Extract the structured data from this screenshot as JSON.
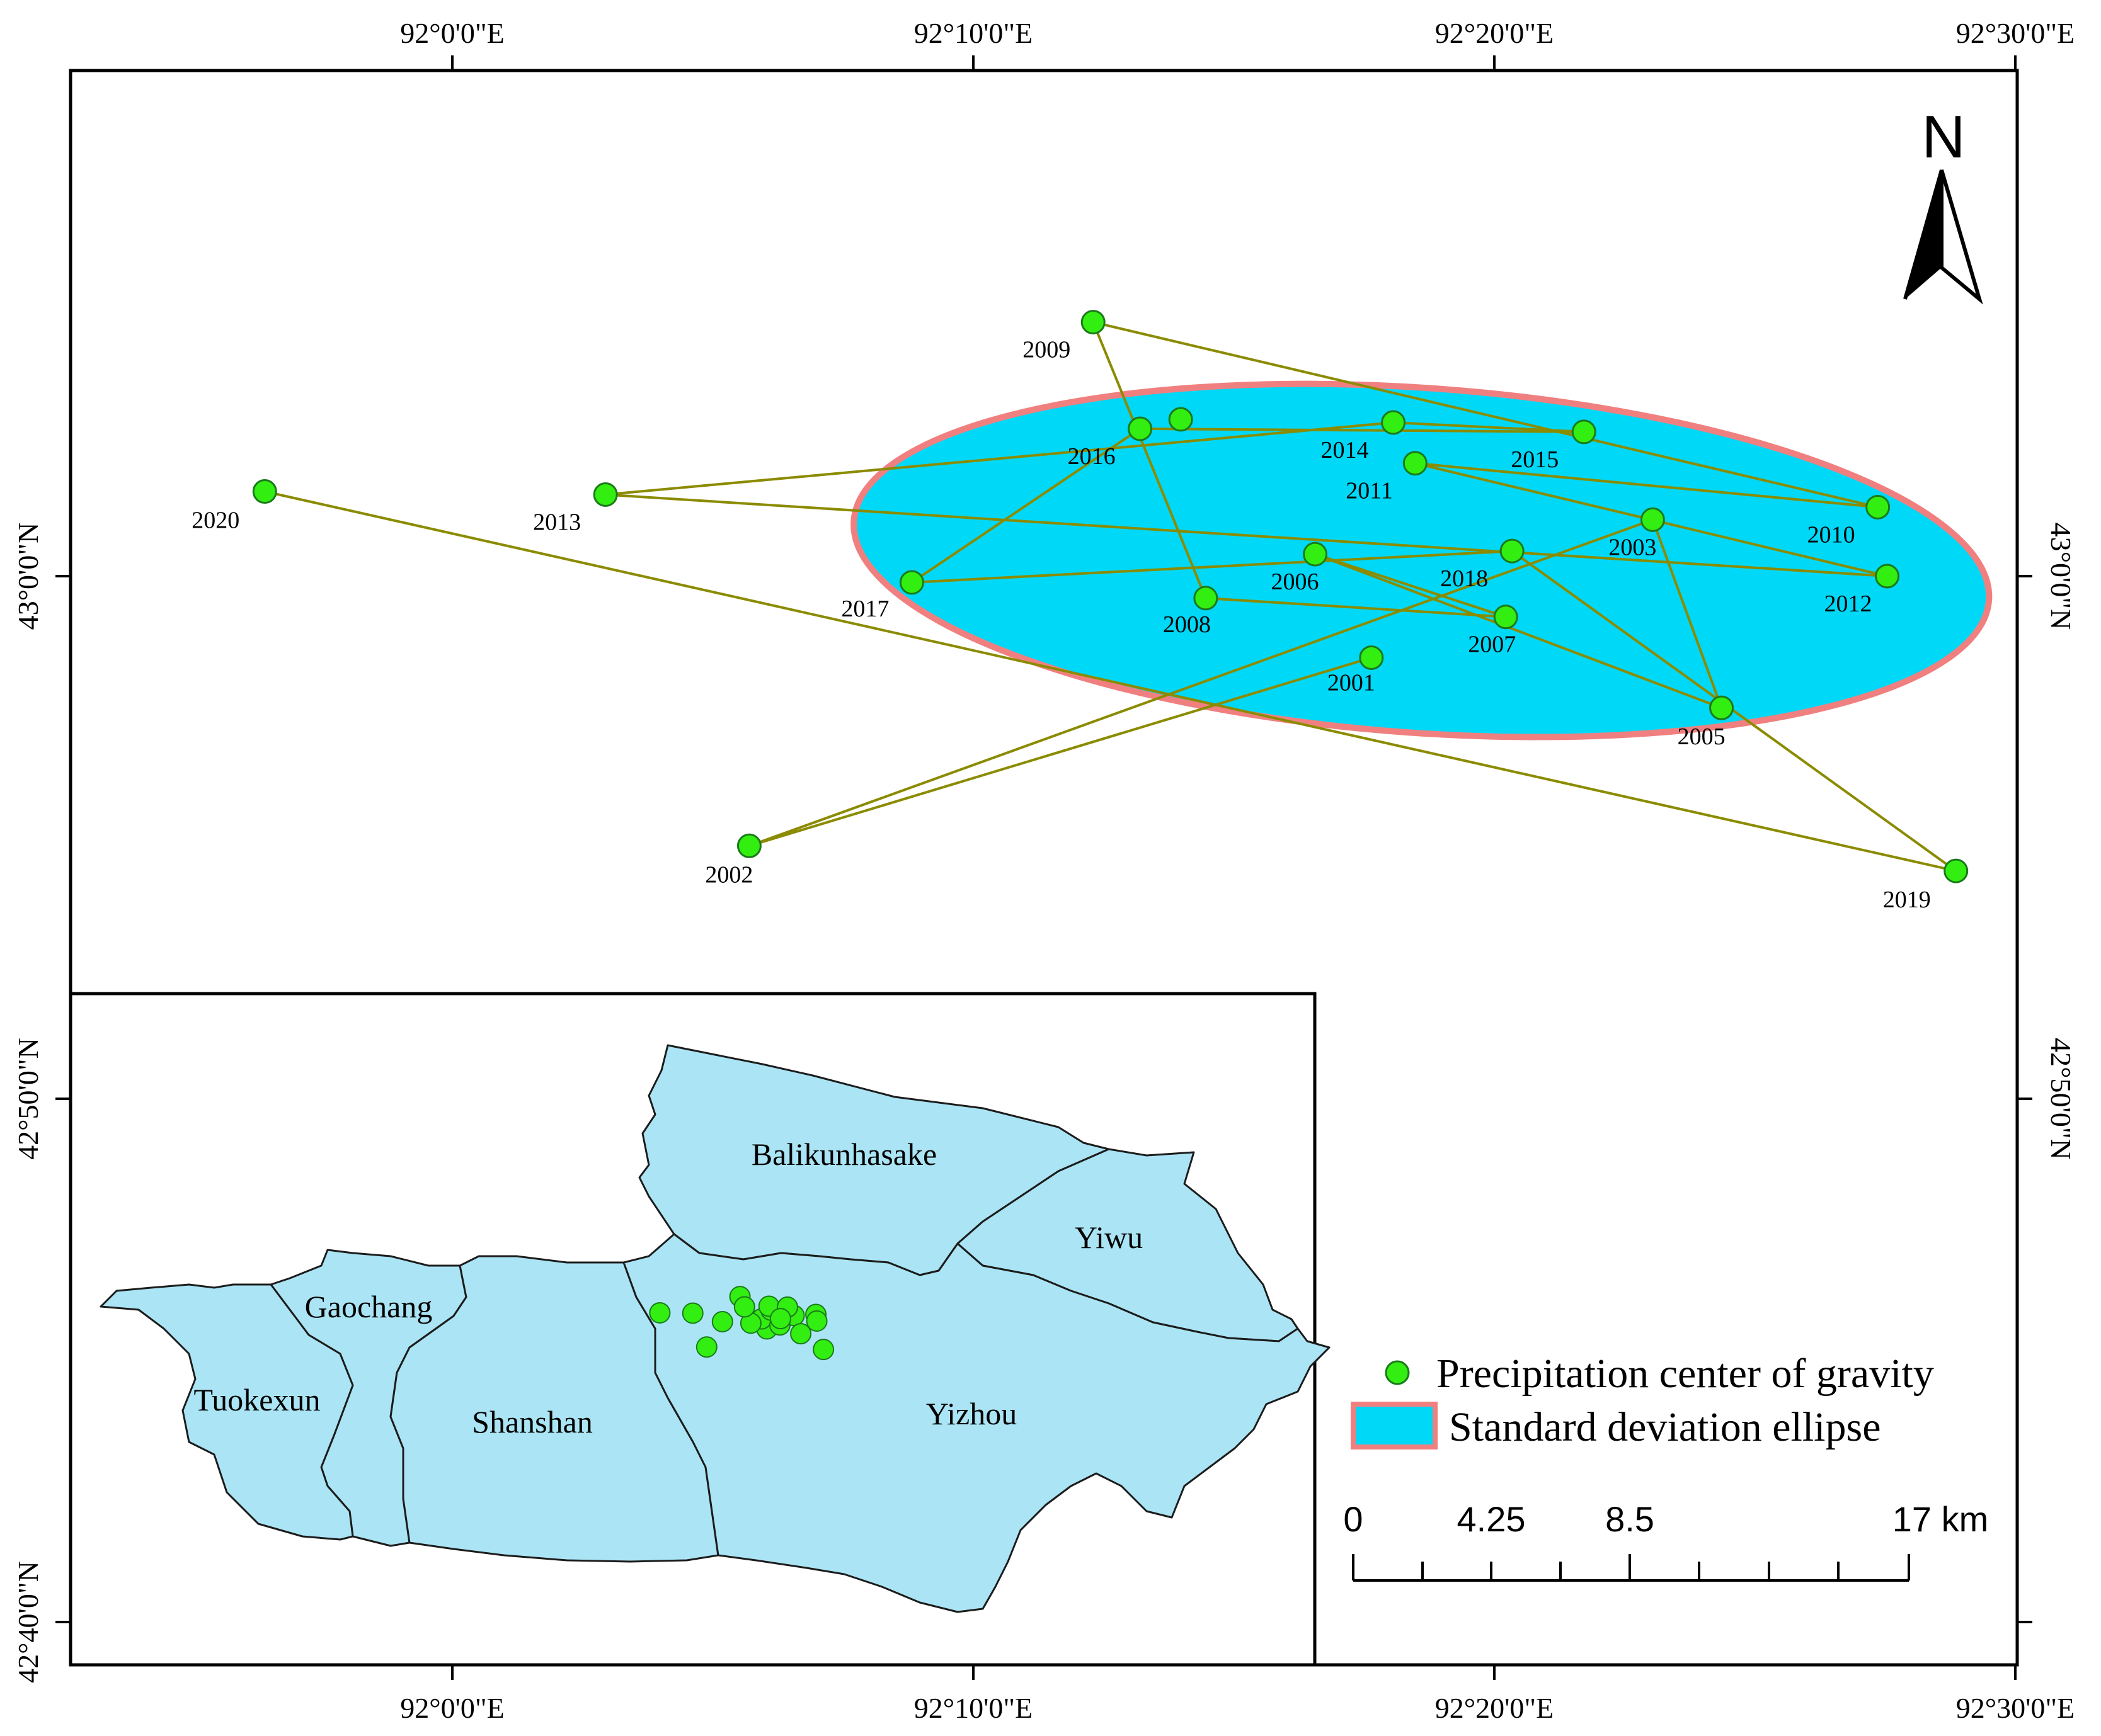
{
  "axes": {
    "top": [
      "92°0'0\"E",
      "92°10'0\"E",
      "92°20'0\"E",
      "92°30'0\"E"
    ],
    "bottom": [
      "92°0'0\"E",
      "92°10'0\"E",
      "92°20'0\"E",
      "92°30'0\"E"
    ],
    "left": [
      "43°0'0\"N",
      "42°50'0\"N",
      "42°40'0\"N"
    ],
    "right": [
      "43°0'0\"N",
      "42°50'0\"N"
    ]
  },
  "north_arrow": {
    "label": "N"
  },
  "chart_data": {
    "type": "scatter",
    "description_of_marks": "yearly points joined chronologically",
    "x_unit": "degrees longitude E",
    "y_unit": "degrees latitude N",
    "points": [
      {
        "year": "2001",
        "lon": 92.294,
        "lat": 42.974
      },
      {
        "year": "2002",
        "lon": 92.095,
        "lat": 42.914
      },
      {
        "year": "2003",
        "lon": 92.384,
        "lat": 43.018
      },
      {
        "year": "2005",
        "lon": 92.406,
        "lat": 42.958
      },
      {
        "year": "2006",
        "lon": 92.276,
        "lat": 43.007
      },
      {
        "year": "2007",
        "lon": 92.337,
        "lat": 42.987
      },
      {
        "year": "2008",
        "lon": 92.241,
        "lat": 42.993
      },
      {
        "year": "2009",
        "lon": 92.205,
        "lat": 43.081
      },
      {
        "year": "2010",
        "lon": 92.456,
        "lat": 43.022
      },
      {
        "year": "2011",
        "lon": 92.308,
        "lat": 43.036
      },
      {
        "year": "2012",
        "lon": 92.459,
        "lat": 43.0
      },
      {
        "year": "2013",
        "lon": 92.049,
        "lat": 43.026
      },
      {
        "year": "2014",
        "lon": 92.301,
        "lat": 43.049
      },
      {
        "year": "2015",
        "lon": 92.362,
        "lat": 43.046
      },
      {
        "year": "2016",
        "lon": 92.22,
        "lat": 43.047
      },
      {
        "year": "2017",
        "lon": 92.147,
        "lat": 42.998
      },
      {
        "year": "2018",
        "lon": 92.339,
        "lat": 43.008
      },
      {
        "year": "2019",
        "lon": 92.481,
        "lat": 42.906
      },
      {
        "year": "2020",
        "lon": 91.94,
        "lat": 43.027
      }
    ],
    "unlabeled_points": [
      {
        "lon": 92.233,
        "lat": 43.05
      }
    ],
    "ellipse": {
      "center_lon": 92.31,
      "center_lat": 43.005,
      "semi_major_deg_lon": 0.182,
      "semi_minor_deg_lat": 0.055
    },
    "xlim": [
      91.92,
      92.5
    ],
    "ylim": [
      42.9,
      43.09
    ],
    "legend": [
      "Precipitation center of gravity",
      "Standard deviation ellipse"
    ]
  },
  "inset": {
    "regions": [
      "Balikunhasake",
      "Yiwu",
      "Gaochang",
      "Tuokexun",
      "Shanshan",
      "Yizhou"
    ]
  },
  "legend": {
    "point_label": "Precipitation center of gravity",
    "ellipse_label": "Standard deviation ellipse"
  },
  "scale_bar": {
    "labels": [
      "0",
      "4.25",
      "8.5",
      "17 km"
    ]
  },
  "colors": {
    "point_fill": "#33ee11",
    "point_stroke": "#1a7a1a",
    "track_line": "#8b8b00",
    "ellipse_fill": "#00d8f7",
    "ellipse_stroke": "#f08080",
    "region_fill": "#abe5f5"
  }
}
